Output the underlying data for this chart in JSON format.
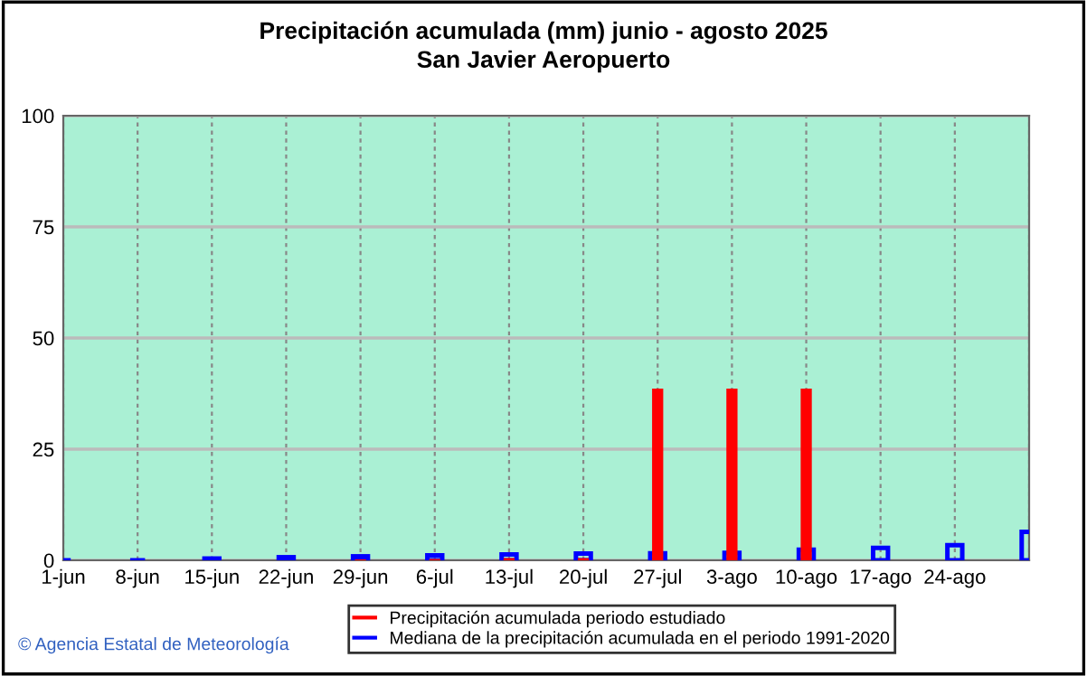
{
  "chart_data": {
    "type": "bar",
    "title": "Precipitación acumulada (mm) junio - agosto 2025",
    "subtitle": "San Javier Aeropuerto",
    "categories": [
      "1-jun",
      "8-jun",
      "15-jun",
      "22-jun",
      "29-jun",
      "6-jul",
      "13-jul",
      "20-jul",
      "27-jul",
      "3-ago",
      "10-ago",
      "17-ago",
      "24-ago",
      null
    ],
    "series": [
      {
        "name": "Precipitación acumulada periodo estudiado",
        "color": "#ff0000",
        "values": [
          0,
          0,
          0,
          0,
          0.2,
          0.3,
          0.5,
          0.5,
          38.6,
          38.6,
          38.6,
          null,
          null,
          null
        ]
      },
      {
        "name": "Mediana de la precipitación acumulada en el periodo 1991-2020",
        "color": "#0000ff",
        "values": [
          0,
          0,
          0.4,
          0.7,
          0.9,
          1.1,
          1.3,
          1.5,
          1.6,
          1.7,
          2.4,
          2.8,
          3.4,
          6.4
        ]
      }
    ],
    "ylim": [
      0,
      100
    ],
    "yticks": [
      0,
      25,
      50,
      75,
      100
    ],
    "grid": true,
    "legend": "bottom",
    "annotations": [
      "© Agencia Estatal de Meteorología"
    ]
  }
}
